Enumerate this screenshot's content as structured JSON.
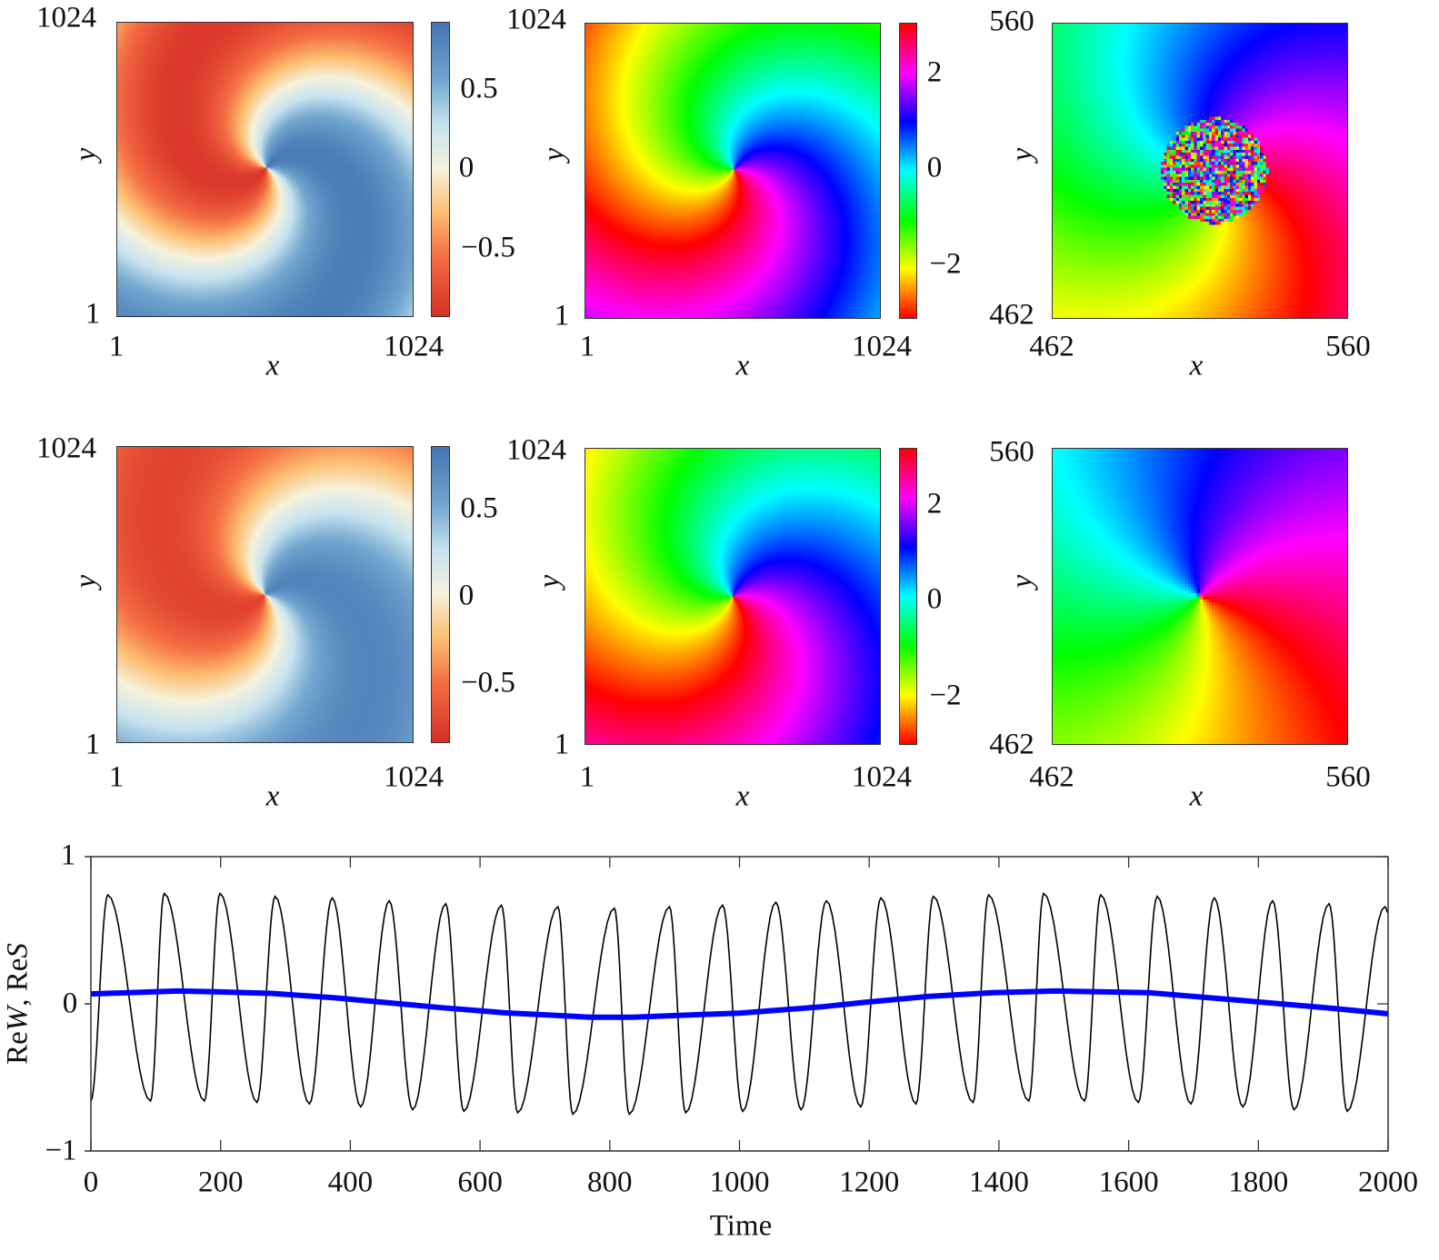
{
  "chart_data": [
    {
      "type": "heatmap",
      "panel": "row1-left",
      "field": "real part",
      "xlabel": "x",
      "ylabel": "y",
      "xlim": [
        1,
        1024
      ],
      "ylim": [
        1,
        1024
      ],
      "xticks": [
        "1",
        "1024"
      ],
      "yticks": [
        "1",
        "1024"
      ],
      "colorbar": {
        "colormap": "RdBu",
        "range": [
          -0.93,
          0.93
        ],
        "ticks": [
          "0.5",
          "0",
          "−0.5"
        ]
      },
      "spiral_core": "centre",
      "colors": {
        "neg": "#d73027",
        "pos": "#4575b4"
      }
    },
    {
      "type": "heatmap",
      "panel": "row1-middle",
      "field": "phase",
      "xlabel": "x",
      "ylabel": "y",
      "xlim": [
        1,
        1024
      ],
      "ylim": [
        1,
        1024
      ],
      "xticks": [
        "1",
        "1024"
      ],
      "yticks": [
        "1",
        "1024"
      ],
      "colorbar": {
        "colormap": "hsv",
        "range": [
          -3.1416,
          3.1416
        ],
        "ticks": [
          "2",
          "0",
          "−2"
        ]
      }
    },
    {
      "type": "heatmap",
      "panel": "row1-right",
      "field": "phase (zoom on core, disordered core)",
      "xlabel": "x",
      "ylabel": "y",
      "xlim": [
        462,
        560
      ],
      "ylim": [
        462,
        560
      ],
      "xticks": [
        "462",
        "560"
      ],
      "yticks": [
        "462",
        "560"
      ],
      "colormap": "hsv",
      "noisy_core": true
    },
    {
      "type": "heatmap",
      "panel": "row2-left",
      "field": "real part",
      "xlabel": "x",
      "ylabel": "y",
      "xlim": [
        1,
        1024
      ],
      "ylim": [
        1,
        1024
      ],
      "xticks": [
        "1",
        "1024"
      ],
      "yticks": [
        "1",
        "1024"
      ],
      "colorbar": {
        "colormap": "RdBu",
        "range": [
          -0.85,
          0.85
        ],
        "ticks": [
          "0.5",
          "0",
          "−0.5"
        ]
      }
    },
    {
      "type": "heatmap",
      "panel": "row2-middle",
      "field": "phase",
      "xlabel": "x",
      "ylabel": "y",
      "xlim": [
        1,
        1024
      ],
      "ylim": [
        1,
        1024
      ],
      "xticks": [
        "1",
        "1024"
      ],
      "yticks": [
        "1",
        "1024"
      ],
      "colorbar": {
        "colormap": "hsv",
        "range": [
          -3.1416,
          3.1416
        ],
        "ticks": [
          "2",
          "0",
          "−2"
        ]
      }
    },
    {
      "type": "heatmap",
      "panel": "row2-right",
      "field": "phase (zoom on core, smooth)",
      "xlabel": "x",
      "ylabel": "y",
      "xlim": [
        462,
        560
      ],
      "ylim": [
        462,
        560
      ],
      "xticks": [
        "462",
        "560"
      ],
      "yticks": [
        "462",
        "560"
      ],
      "colormap": "hsv",
      "noisy_core": false
    },
    {
      "type": "line",
      "xlabel": "Time",
      "ylabel_parts": [
        "Re",
        "W",
        ", Re",
        "S"
      ],
      "xlim": [
        0,
        2000
      ],
      "ylim": [
        -1,
        1
      ],
      "xticks": [
        "0",
        "200",
        "400",
        "600",
        "800",
        "1000",
        "1200",
        "1400",
        "1600",
        "1800",
        "2000"
      ],
      "yticks": [
        "1",
        "0",
        "−1"
      ],
      "grid": false,
      "series": [
        {
          "name": "ReW",
          "color": "#000000",
          "extrema": [
            [
              0,
              -0.66
            ],
            [
              26,
              0.74
            ],
            [
              92,
              -0.66
            ],
            [
              113,
              0.75
            ],
            [
              175,
              -0.66
            ],
            [
              199,
              0.75
            ],
            [
              256,
              -0.67
            ],
            [
              284,
              0.73
            ],
            [
              337,
              -0.68
            ],
            [
              372,
              0.72
            ],
            [
              416,
              -0.7
            ],
            [
              460,
              0.7
            ],
            [
              496,
              -0.72
            ],
            [
              547,
              0.68
            ],
            [
              575,
              -0.73
            ],
            [
              633,
              0.67
            ],
            [
              658,
              -0.74
            ],
            [
              720,
              0.66
            ],
            [
              743,
              -0.75
            ],
            [
              807,
              0.65
            ],
            [
              830,
              -0.75
            ],
            [
              892,
              0.66
            ],
            [
              917,
              -0.74
            ],
            [
              974,
              0.67
            ],
            [
              1005,
              -0.73
            ],
            [
              1056,
              0.69
            ],
            [
              1095,
              -0.72
            ],
            [
              1134,
              0.7
            ],
            [
              1187,
              -0.7
            ],
            [
              1218,
              0.72
            ],
            [
              1272,
              -0.68
            ],
            [
              1299,
              0.73
            ],
            [
              1360,
              -0.67
            ],
            [
              1384,
              0.74
            ],
            [
              1446,
              -0.66
            ],
            [
              1469,
              0.75
            ],
            [
              1532,
              -0.66
            ],
            [
              1557,
              0.74
            ],
            [
              1615,
              -0.67
            ],
            [
              1644,
              0.73
            ],
            [
              1696,
              -0.68
            ],
            [
              1732,
              0.72
            ],
            [
              1776,
              -0.7
            ],
            [
              1822,
              0.7
            ],
            [
              1855,
              -0.72
            ],
            [
              1909,
              0.68
            ],
            [
              1937,
              -0.73
            ],
            [
              1995,
              0.66
            ],
            [
              2000,
              0.62
            ]
          ]
        },
        {
          "name": "ReS",
          "color": "#0000ff",
          "x": [
            0,
            134,
            200,
            278,
            376,
            540,
            638,
            769,
            835,
            1000,
            1128,
            1193,
            1291,
            1390,
            1488,
            1632,
            1782,
            1913,
            2000
          ],
          "y": [
            0.067,
            0.087,
            0.081,
            0.071,
            0.041,
            -0.026,
            -0.061,
            -0.091,
            -0.091,
            -0.063,
            -0.02,
            0.01,
            0.05,
            0.075,
            0.087,
            0.075,
            0.02,
            -0.03,
            -0.067
          ]
        }
      ]
    }
  ]
}
